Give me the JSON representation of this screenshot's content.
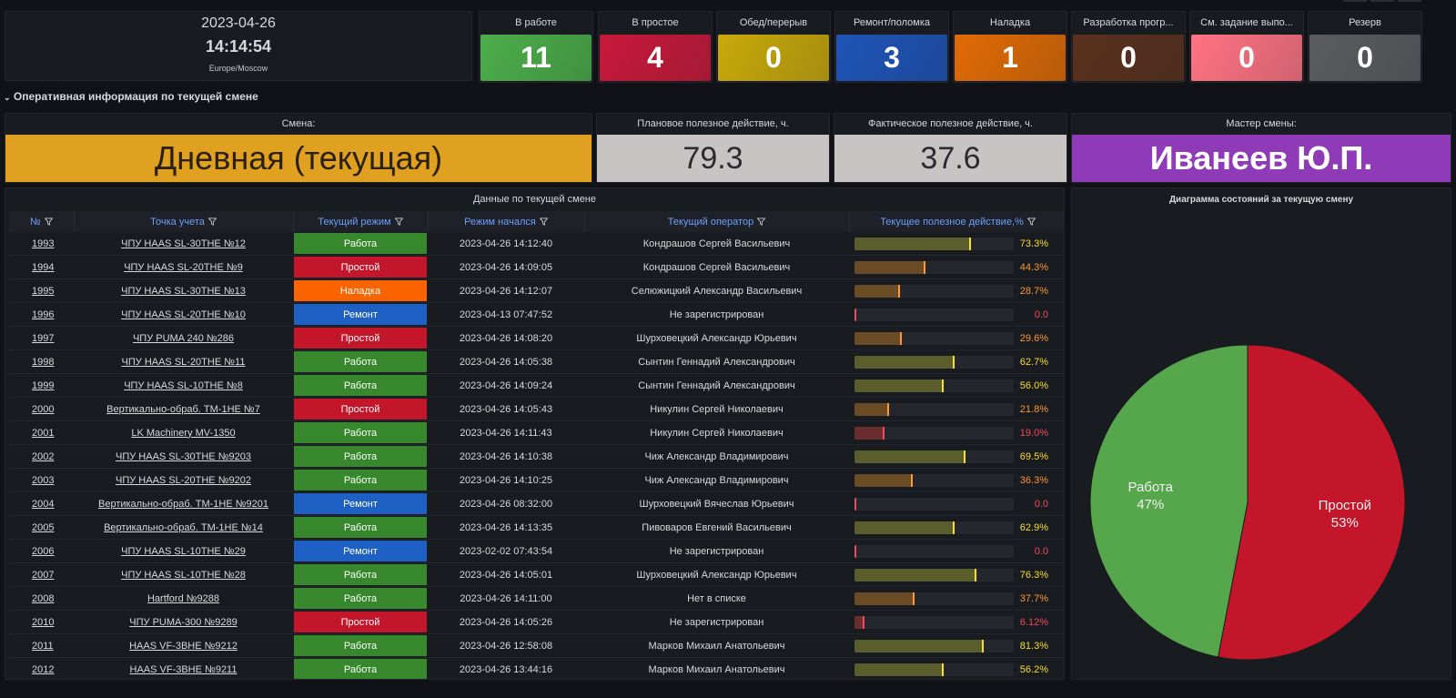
{
  "clock": {
    "date": "2023-04-26",
    "time": "14:14:54",
    "timezone": "Europe/Moscow"
  },
  "stats": [
    {
      "label": "В работе",
      "value": "11",
      "color": "#4cae4a"
    },
    {
      "label": "В простое",
      "value": "4",
      "color": "#c8193a"
    },
    {
      "label": "Обед/перерыв",
      "value": "0",
      "color": "#c9a90b"
    },
    {
      "label": "Ремонт/поломка",
      "value": "3",
      "color": "#1f54b8"
    },
    {
      "label": "Наладка",
      "value": "1",
      "color": "#e06b05"
    },
    {
      "label": "Разработка прогр...",
      "value": "0",
      "color": "#5a311e"
    },
    {
      "label": "См. задание выпо...",
      "value": "0",
      "color": "#ff7383"
    },
    {
      "label": "Резерв",
      "value": "0",
      "color": "#5b5c5f"
    }
  ],
  "section_title": "Оперативная информация по текущей смене",
  "shift": {
    "title": "Смена:",
    "value": "Дневная (текущая)",
    "color": "#e0a020"
  },
  "planned": {
    "title": "Плановое полезное действие, ч.",
    "value": "79.3"
  },
  "actual": {
    "title": "Фактическое полезное действие, ч.",
    "value": "37.6"
  },
  "master": {
    "title": "Мастер смены:",
    "value": "Иванеев Ю.П.",
    "color": "#8f3bb8"
  },
  "table": {
    "title": "Данные по текущей смене",
    "columns": [
      "№",
      "Точка учета",
      "Текущий режим",
      "Режим начался",
      "Текущий оператор",
      "Текущее полезное действие,%"
    ],
    "rows": [
      {
        "num": "1993",
        "point": "ЧПУ HAAS SL-30THE №12",
        "mode": "Работа",
        "started": "2023-04-26 14:12:40",
        "operator": "Кондрашов Сергей Васильевич",
        "pct": 73.3,
        "pct_label": "73.3%"
      },
      {
        "num": "1994",
        "point": "ЧПУ HAAS SL-20THE №9",
        "mode": "Простой",
        "started": "2023-04-26 14:09:05",
        "operator": "Кондрашов Сергей Васильевич",
        "pct": 44.3,
        "pct_label": "44.3%"
      },
      {
        "num": "1995",
        "point": "ЧПУ HAAS SL-30THE №13",
        "mode": "Наладка",
        "started": "2023-04-26 14:12:07",
        "operator": "Селюжицкий Александр Васильевич",
        "pct": 28.7,
        "pct_label": "28.7%"
      },
      {
        "num": "1996",
        "point": "ЧПУ HAAS SL-20THE №10",
        "mode": "Ремонт",
        "started": "2023-04-13 07:47:52",
        "operator": "Не зарегистрирован",
        "pct": 0,
        "pct_label": "0.0"
      },
      {
        "num": "1997",
        "point": "ЧПУ PUMA 240 №286",
        "mode": "Простой",
        "started": "2023-04-26 14:08:20",
        "operator": "Шурховецкий Александр Юрьевич",
        "pct": 29.6,
        "pct_label": "29.6%"
      },
      {
        "num": "1998",
        "point": "ЧПУ HAAS SL-20THE №11",
        "mode": "Работа",
        "started": "2023-04-26 14:05:38",
        "operator": "Сынтин Геннадий Александрович",
        "pct": 62.7,
        "pct_label": "62.7%"
      },
      {
        "num": "1999",
        "point": "ЧПУ HAAS SL-10THE №8",
        "mode": "Работа",
        "started": "2023-04-26 14:09:24",
        "operator": "Сынтин Геннадий Александрович",
        "pct": 56.0,
        "pct_label": "56.0%"
      },
      {
        "num": "2000",
        "point": "Вертикально-обраб. TM-1HE №7",
        "mode": "Простой",
        "started": "2023-04-26 14:05:43",
        "operator": "Никулин Сергей Николаевич",
        "pct": 21.8,
        "pct_label": "21.8%"
      },
      {
        "num": "2001",
        "point": "LK Machinery MV-1350",
        "mode": "Работа",
        "started": "2023-04-26 14:11:43",
        "operator": "Никулин Сергей Николаевич",
        "pct": 19.0,
        "pct_label": "19.0%"
      },
      {
        "num": "2002",
        "point": "ЧПУ HAAS SL-30THE №9203",
        "mode": "Работа",
        "started": "2023-04-26 14:10:38",
        "operator": "Чиж Александр Владимирович",
        "pct": 69.5,
        "pct_label": "69.5%"
      },
      {
        "num": "2003",
        "point": "ЧПУ HAAS SL-20THE №9202",
        "mode": "Работа",
        "started": "2023-04-26 14:10:25",
        "operator": "Чиж Александр Владимирович",
        "pct": 36.3,
        "pct_label": "36.3%"
      },
      {
        "num": "2004",
        "point": "Вертикально-обраб. TM-1HE №9201",
        "mode": "Ремонт",
        "started": "2023-04-26 08:32:00",
        "operator": "Шурховецкий Вячеслав Юрьевич",
        "pct": 0,
        "pct_label": "0.0"
      },
      {
        "num": "2005",
        "point": "Вертикально-обраб. TM-1HE №14",
        "mode": "Работа",
        "started": "2023-04-26 14:13:35",
        "operator": "Пивоваров Евгений Васильевич",
        "pct": 62.9,
        "pct_label": "62.9%"
      },
      {
        "num": "2006",
        "point": "ЧПУ HAAS SL-10THE №29",
        "mode": "Ремонт",
        "started": "2023-02-02 07:43:54",
        "operator": "Не зарегистрирован",
        "pct": 0,
        "pct_label": "0.0"
      },
      {
        "num": "2007",
        "point": "ЧПУ HAAS SL-10THE №28",
        "mode": "Работа",
        "started": "2023-04-26 14:05:01",
        "operator": "Шурховецкий Александр Юрьевич",
        "pct": 76.3,
        "pct_label": "76.3%"
      },
      {
        "num": "2008",
        "point": "Hartford №9288",
        "mode": "Работа",
        "started": "2023-04-26 14:11:00",
        "operator": "Нет в списке",
        "pct": 37.7,
        "pct_label": "37.7%"
      },
      {
        "num": "2010",
        "point": "ЧПУ PUMA-300 №9289",
        "mode": "Простой",
        "started": "2023-04-26 14:05:26",
        "operator": "Не зарегистрирован",
        "pct": 6.12,
        "pct_label": "6.12%"
      },
      {
        "num": "2011",
        "point": "HAAS VF-3BHE №9212",
        "mode": "Работа",
        "started": "2023-04-26 12:58:08",
        "operator": "Марков Михаил Анатольевич",
        "pct": 81.3,
        "pct_label": "81.3%"
      },
      {
        "num": "2012",
        "point": "HAAS VF-3BHE №9211",
        "mode": "Работа",
        "started": "2023-04-26 13:44:16",
        "operator": "Марков Михаил Анатольевич",
        "pct": 56.2,
        "pct_label": "56.2%"
      }
    ],
    "mode_colors": {
      "Работа": "#37872d",
      "Простой": "#c4162a",
      "Наладка": "#fa6400",
      "Ремонт": "#1f60c4"
    }
  },
  "chart_data": {
    "type": "pie",
    "title": "Диаграмма состояний за текущую смену",
    "slices": [
      {
        "label": "Простой",
        "value": 53,
        "display": "53%",
        "color": "#c4162a"
      },
      {
        "label": "Работа",
        "value": 47,
        "display": "47%",
        "color": "#56a64b"
      }
    ]
  }
}
